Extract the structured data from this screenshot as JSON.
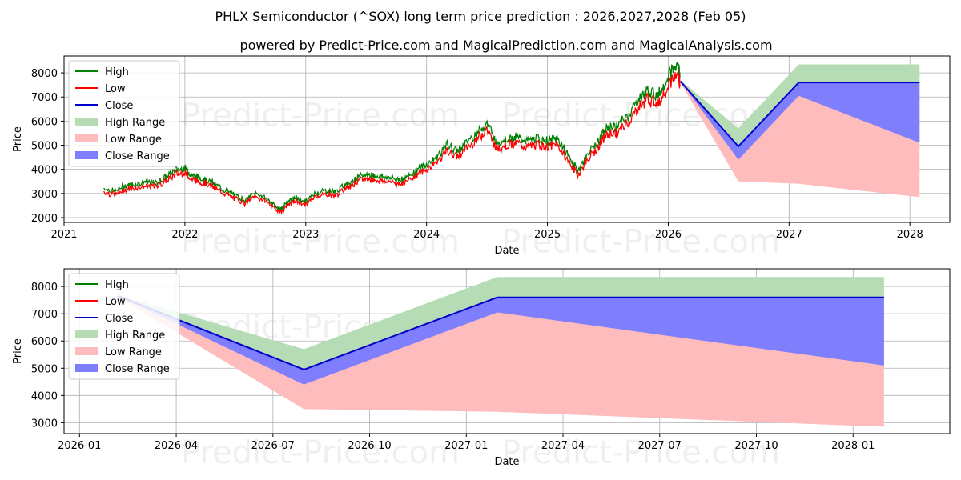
{
  "title": "PHLX Semiconductor (^SOX) long term price prediction : 2026,2027,2028 (Feb 05)",
  "subtitle": "powered by Predict-Price.com and MagicalPrediction.com and MagicalAnalysis.com",
  "watermark": "Predict-Price.com",
  "colors": {
    "high": "#008000",
    "low": "#ff0000",
    "close": "#0000cc",
    "high_range": "#b6dcb6",
    "low_range": "#ffbcbc",
    "close_range": "#7f7ffd",
    "grid": "#b0b0b0"
  },
  "legend": [
    "High",
    "Low",
    "Close",
    "High Range",
    "Low Range",
    "Close Range"
  ],
  "chart_data": [
    {
      "type": "line",
      "name": "full-history",
      "xlabel": "Date",
      "ylabel": "Price",
      "xlim": [
        2021.0,
        2028.33
      ],
      "ylim": [
        1800,
        8700
      ],
      "x_ticks": [
        2021,
        2022,
        2023,
        2024,
        2025,
        2026,
        2027,
        2028
      ],
      "x_tick_labels": [
        "2021",
        "2022",
        "2023",
        "2024",
        "2025",
        "2026",
        "2027",
        "2028"
      ],
      "y_ticks": [
        2000,
        3000,
        4000,
        5000,
        6000,
        7000,
        8000
      ],
      "y_tick_labels": [
        "2000",
        "3000",
        "4000",
        "5000",
        "6000",
        "7000",
        "8000"
      ],
      "history_close": [
        [
          2021.33,
          3150
        ],
        [
          2021.42,
          3000
        ],
        [
          2021.5,
          3250
        ],
        [
          2021.58,
          3300
        ],
        [
          2021.67,
          3400
        ],
        [
          2021.75,
          3350
        ],
        [
          2021.83,
          3550
        ],
        [
          2021.92,
          3900
        ],
        [
          2022.0,
          3950
        ],
        [
          2022.05,
          3700
        ],
        [
          2022.1,
          3600
        ],
        [
          2022.17,
          3500
        ],
        [
          2022.25,
          3300
        ],
        [
          2022.33,
          3050
        ],
        [
          2022.42,
          2850
        ],
        [
          2022.5,
          2650
        ],
        [
          2022.58,
          2950
        ],
        [
          2022.67,
          2750
        ],
        [
          2022.75,
          2400
        ],
        [
          2022.8,
          2300
        ],
        [
          2022.85,
          2600
        ],
        [
          2022.92,
          2750
        ],
        [
          2023.0,
          2600
        ],
        [
          2023.08,
          2950
        ],
        [
          2023.17,
          3050
        ],
        [
          2023.25,
          3000
        ],
        [
          2023.33,
          3300
        ],
        [
          2023.42,
          3550
        ],
        [
          2023.5,
          3700
        ],
        [
          2023.58,
          3650
        ],
        [
          2023.67,
          3600
        ],
        [
          2023.75,
          3500
        ],
        [
          2023.83,
          3550
        ],
        [
          2023.92,
          3900
        ],
        [
          2024.0,
          4100
        ],
        [
          2024.08,
          4400
        ],
        [
          2024.17,
          4900
        ],
        [
          2024.25,
          4650
        ],
        [
          2024.33,
          5000
        ],
        [
          2024.42,
          5400
        ],
        [
          2024.5,
          5800
        ],
        [
          2024.58,
          5000
        ],
        [
          2024.67,
          5150
        ],
        [
          2024.75,
          5200
        ],
        [
          2024.83,
          5050
        ],
        [
          2024.92,
          5150
        ],
        [
          2025.0,
          5050
        ],
        [
          2025.08,
          5150
        ],
        [
          2025.17,
          4500
        ],
        [
          2025.25,
          3850
        ],
        [
          2025.33,
          4500
        ],
        [
          2025.42,
          5050
        ],
        [
          2025.5,
          5600
        ],
        [
          2025.58,
          5650
        ],
        [
          2025.67,
          6100
        ],
        [
          2025.75,
          6700
        ],
        [
          2025.83,
          7100
        ],
        [
          2025.92,
          6900
        ],
        [
          2026.0,
          7700
        ],
        [
          2026.08,
          8150
        ],
        [
          2026.1,
          7650
        ]
      ],
      "forecast": {
        "x": [
          2026.1,
          2026.58,
          2027.08,
          2028.08
        ],
        "close": [
          7650,
          4950,
          7600,
          7600
        ],
        "high_upper": [
          7700,
          5700,
          8350,
          8350
        ],
        "low_lower": [
          7600,
          3500,
          3400,
          2850
        ],
        "close_lower": [
          7650,
          4400,
          7050,
          5100
        ]
      }
    },
    {
      "type": "line",
      "name": "forecast-zoom",
      "xlabel": "Date",
      "ylabel": "Price",
      "xlim": [
        2025.96,
        2028.25
      ],
      "ylim": [
        2600,
        8650
      ],
      "x_ticks": [
        2026.0,
        2026.25,
        2026.5,
        2026.75,
        2027.0,
        2027.25,
        2027.5,
        2027.75,
        2028.0
      ],
      "x_tick_labels": [
        "2026-01",
        "2026-04",
        "2026-07",
        "2026-10",
        "2027-01",
        "2027-04",
        "2027-07",
        "2027-10",
        "2028-01"
      ],
      "y_ticks": [
        3000,
        4000,
        5000,
        6000,
        7000,
        8000
      ],
      "y_tick_labels": [
        "3000",
        "4000",
        "5000",
        "6000",
        "7000",
        "8000"
      ],
      "forecast": {
        "x": [
          2026.1,
          2026.58,
          2027.08,
          2028.08
        ],
        "close": [
          7650,
          4950,
          7600,
          7600
        ],
        "high_upper": [
          7700,
          5700,
          8350,
          8350
        ],
        "low_lower": [
          7600,
          3500,
          3400,
          2850
        ],
        "close_lower": [
          7650,
          4400,
          7050,
          5100
        ]
      }
    }
  ]
}
